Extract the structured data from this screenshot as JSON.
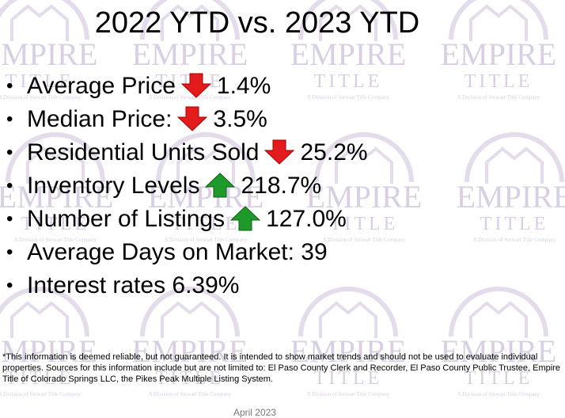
{
  "title": "2022 YTD vs. 2023 YTD",
  "watermark": {
    "name": "EMPIRE",
    "sub": "TITLE",
    "tagline": "A Division of Stewart Title Company"
  },
  "bullets": [
    {
      "label": "Average Price",
      "arrow": "down",
      "value": "1.4%"
    },
    {
      "label": "Median Price:",
      "arrow": "down",
      "value": "3.5%"
    },
    {
      "label": "Residential Units Sold",
      "arrow": "down",
      "value": "25.2%"
    },
    {
      "label": "Inventory Levels",
      "arrow": "up",
      "value": "218.7%"
    },
    {
      "label": "Number of Listings",
      "arrow": "up",
      "value": "127.0%"
    },
    {
      "label": "Average Days on Market: 39"
    },
    {
      "label": "Interest rates 6.39%"
    }
  ],
  "footnote": "*This information is deemed reliable, but not guaranteed.  It is intended to show market trends and should not be used to evaluate individual properties.  Sources for this information include but are not limited to: El Paso County Clerk and Recorder, El Paso County Public Trustee, Empire Title of Colorado Springs LLC, the Pikes Peak Multiple Listing System.",
  "date": "April 2023"
}
